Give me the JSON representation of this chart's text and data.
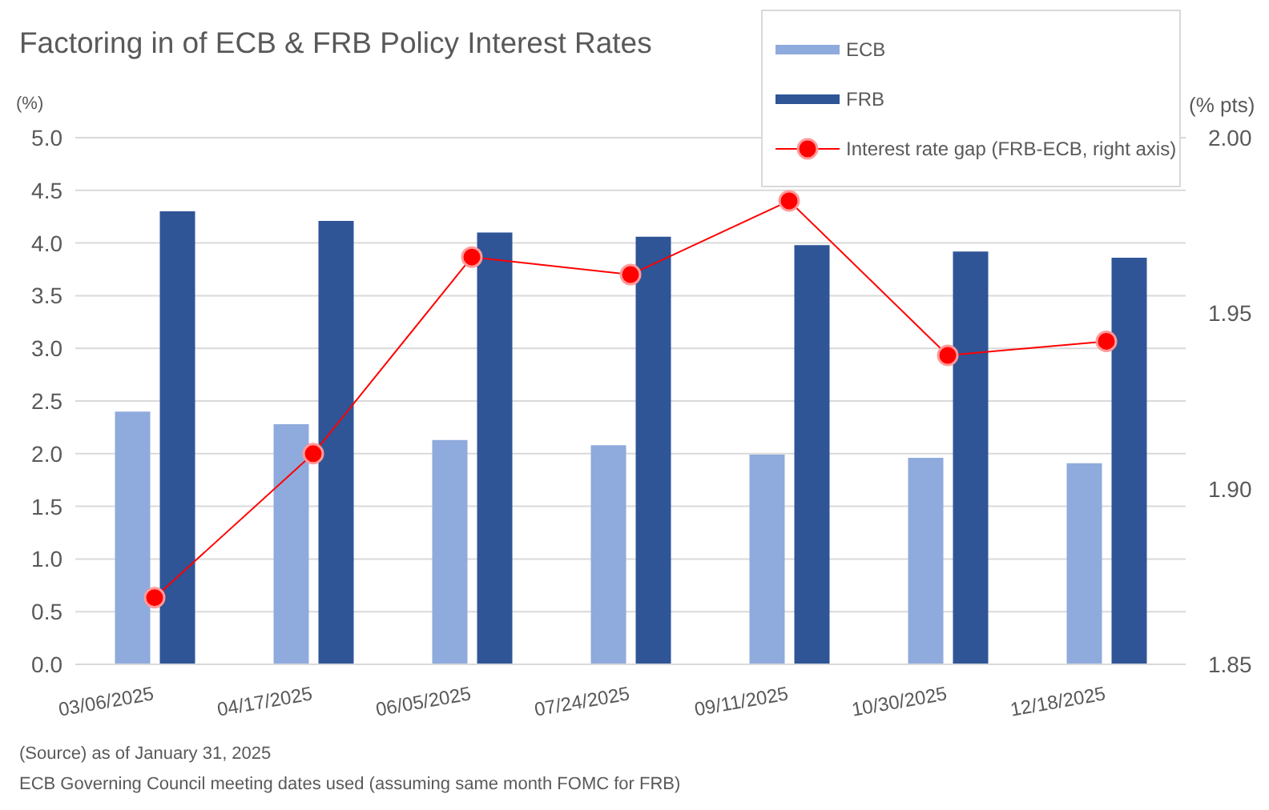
{
  "chart_data": {
    "type": "bar",
    "title": "Factoring in of ECB & FRB Policy Interest Rates",
    "ylabel": "(%)",
    "y2label": "(% pts)",
    "categories": [
      "03/06/2025",
      "04/17/2025",
      "06/05/2025",
      "07/24/2025",
      "09/11/2025",
      "10/30/2025",
      "12/18/2025"
    ],
    "series": [
      {
        "name": "ECB",
        "color": "#8faadc",
        "values": [
          2.4,
          2.28,
          2.13,
          2.08,
          1.99,
          1.96,
          1.91
        ]
      },
      {
        "name": "FRB",
        "color": "#2f5597",
        "values": [
          4.3,
          4.21,
          4.1,
          4.06,
          3.98,
          3.92,
          3.86
        ]
      },
      {
        "name": "Interest rate gap (FRB-ECB, right axis)",
        "type": "line",
        "axis": "y2",
        "color": "#ff0000",
        "values": [
          1.869,
          1.91,
          1.966,
          1.961,
          1.982,
          1.938,
          1.942
        ]
      }
    ],
    "ylim": [
      0,
      5
    ],
    "yticks": [
      {
        "value": 0,
        "label": "0.0"
      },
      0.5,
      {
        "value": 1,
        "label": "1.0"
      },
      1.5,
      {
        "value": 2,
        "label": "2.0"
      },
      2.5,
      {
        "value": 3,
        "label": "3.0"
      },
      3.5,
      {
        "value": 4,
        "label": "4.0"
      },
      4.5,
      {
        "value": 5,
        "label": "5.0"
      }
    ],
    "y2lim": [
      1.85,
      2.0
    ],
    "y2ticks": [
      1.85,
      {
        "value": 1.9,
        "label": "1.90"
      },
      1.95,
      {
        "value": 2.0,
        "label": "2.00"
      }
    ],
    "grid": "y",
    "legend": "top right",
    "marker": "circle",
    "line_style": "solid",
    "annotations": [
      "(Source) as of January 31, 2025",
      "ECB Governing Council meeting dates used (assuming same month FOMC for FRB)"
    ]
  }
}
